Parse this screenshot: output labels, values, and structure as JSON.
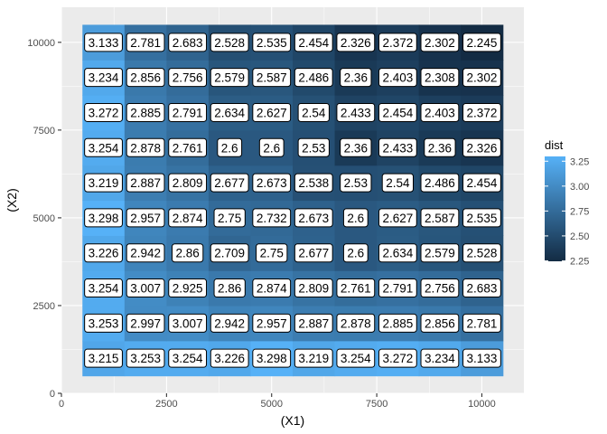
{
  "chart_data": {
    "type": "heatmap",
    "xlabel": "(X1)",
    "ylabel": "(X2)",
    "xlim": [
      0,
      11000
    ],
    "ylim": [
      0,
      11000
    ],
    "x_ticks": [
      0,
      2500,
      5000,
      7500,
      10000
    ],
    "y_ticks": [
      0,
      2500,
      5000,
      7500,
      10000
    ],
    "x_tick_labels": [
      "0",
      "2500",
      "5000",
      "7500",
      "10000"
    ],
    "y_tick_labels": [
      "0",
      "2500",
      "5000",
      "7500",
      "10000"
    ],
    "x": [
      1000,
      2000,
      3000,
      4000,
      5000,
      6000,
      7000,
      8000,
      9000,
      10000
    ],
    "y": [
      1000,
      2000,
      3000,
      4000,
      5000,
      6000,
      7000,
      8000,
      9000,
      10000
    ],
    "values": [
      [
        3.215,
        3.253,
        3.254,
        3.226,
        3.298,
        3.219,
        3.254,
        3.272,
        3.234,
        3.133
      ],
      [
        3.253,
        2.997,
        3.007,
        2.942,
        2.957,
        2.887,
        2.878,
        2.885,
        2.856,
        2.781
      ],
      [
        3.254,
        3.007,
        2.925,
        2.86,
        2.874,
        2.809,
        2.761,
        2.791,
        2.756,
        2.683
      ],
      [
        3.226,
        2.942,
        2.86,
        2.709,
        2.75,
        2.677,
        2.6,
        2.634,
        2.579,
        2.528
      ],
      [
        3.298,
        2.957,
        2.874,
        2.75,
        2.732,
        2.673,
        2.6,
        2.627,
        2.587,
        2.535
      ],
      [
        3.219,
        2.887,
        2.809,
        2.677,
        2.673,
        2.538,
        2.53,
        2.54,
        2.486,
        2.454
      ],
      [
        3.254,
        2.878,
        2.761,
        2.6,
        2.6,
        2.53,
        2.36,
        2.433,
        2.36,
        2.326
      ],
      [
        3.272,
        2.885,
        2.791,
        2.634,
        2.627,
        2.54,
        2.433,
        2.454,
        2.403,
        2.372
      ],
      [
        3.234,
        2.856,
        2.756,
        2.579,
        2.587,
        2.486,
        2.36,
        2.403,
        2.308,
        2.302
      ],
      [
        3.133,
        2.781,
        2.683,
        2.528,
        2.535,
        2.454,
        2.326,
        2.372,
        2.302,
        2.245
      ]
    ],
    "value_labels": [
      [
        "3.215",
        "3.253",
        "3.254",
        "3.226",
        "3.298",
        "3.219",
        "3.254",
        "3.272",
        "3.234",
        "3.133"
      ],
      [
        "3.253",
        "2.997",
        "3.007",
        "2.942",
        "2.957",
        "2.887",
        "2.878",
        "2.885",
        "2.856",
        "2.781"
      ],
      [
        "3.254",
        "3.007",
        "2.925",
        "2.86",
        "2.874",
        "2.809",
        "2.761",
        "2.791",
        "2.756",
        "2.683"
      ],
      [
        "3.226",
        "2.942",
        "2.86",
        "2.709",
        "2.75",
        "2.677",
        "2.6",
        "2.634",
        "2.579",
        "2.528"
      ],
      [
        "3.298",
        "2.957",
        "2.874",
        "2.75",
        "2.732",
        "2.673",
        "2.6",
        "2.627",
        "2.587",
        "2.535"
      ],
      [
        "3.219",
        "2.887",
        "2.809",
        "2.677",
        "2.673",
        "2.538",
        "2.53",
        "2.54",
        "2.486",
        "2.454"
      ],
      [
        "3.254",
        "2.878",
        "2.761",
        "2.6",
        "2.6",
        "2.53",
        "2.36",
        "2.433",
        "2.36",
        "2.326"
      ],
      [
        "3.272",
        "2.885",
        "2.791",
        "2.634",
        "2.627",
        "2.54",
        "2.433",
        "2.454",
        "2.403",
        "2.372"
      ],
      [
        "3.234",
        "2.856",
        "2.756",
        "2.579",
        "2.587",
        "2.486",
        "2.36",
        "2.403",
        "2.308",
        "2.302"
      ],
      [
        "3.133",
        "2.781",
        "2.683",
        "2.528",
        "2.535",
        "2.454",
        "2.326",
        "2.372",
        "2.302",
        "2.245"
      ]
    ],
    "legend": {
      "title": "dist",
      "ticks": [
        2.25,
        2.5,
        2.75,
        3.0,
        3.25
      ],
      "tick_labels": [
        "2.25",
        "2.50",
        "2.75",
        "3.00",
        "3.25"
      ],
      "placement": "right"
    },
    "color_scale": {
      "low_value": 2.245,
      "high_value": 3.298,
      "low_color": "#132B43",
      "high_color": "#56B1F7"
    },
    "panel_background": "#EBEBEB",
    "grid": true
  }
}
